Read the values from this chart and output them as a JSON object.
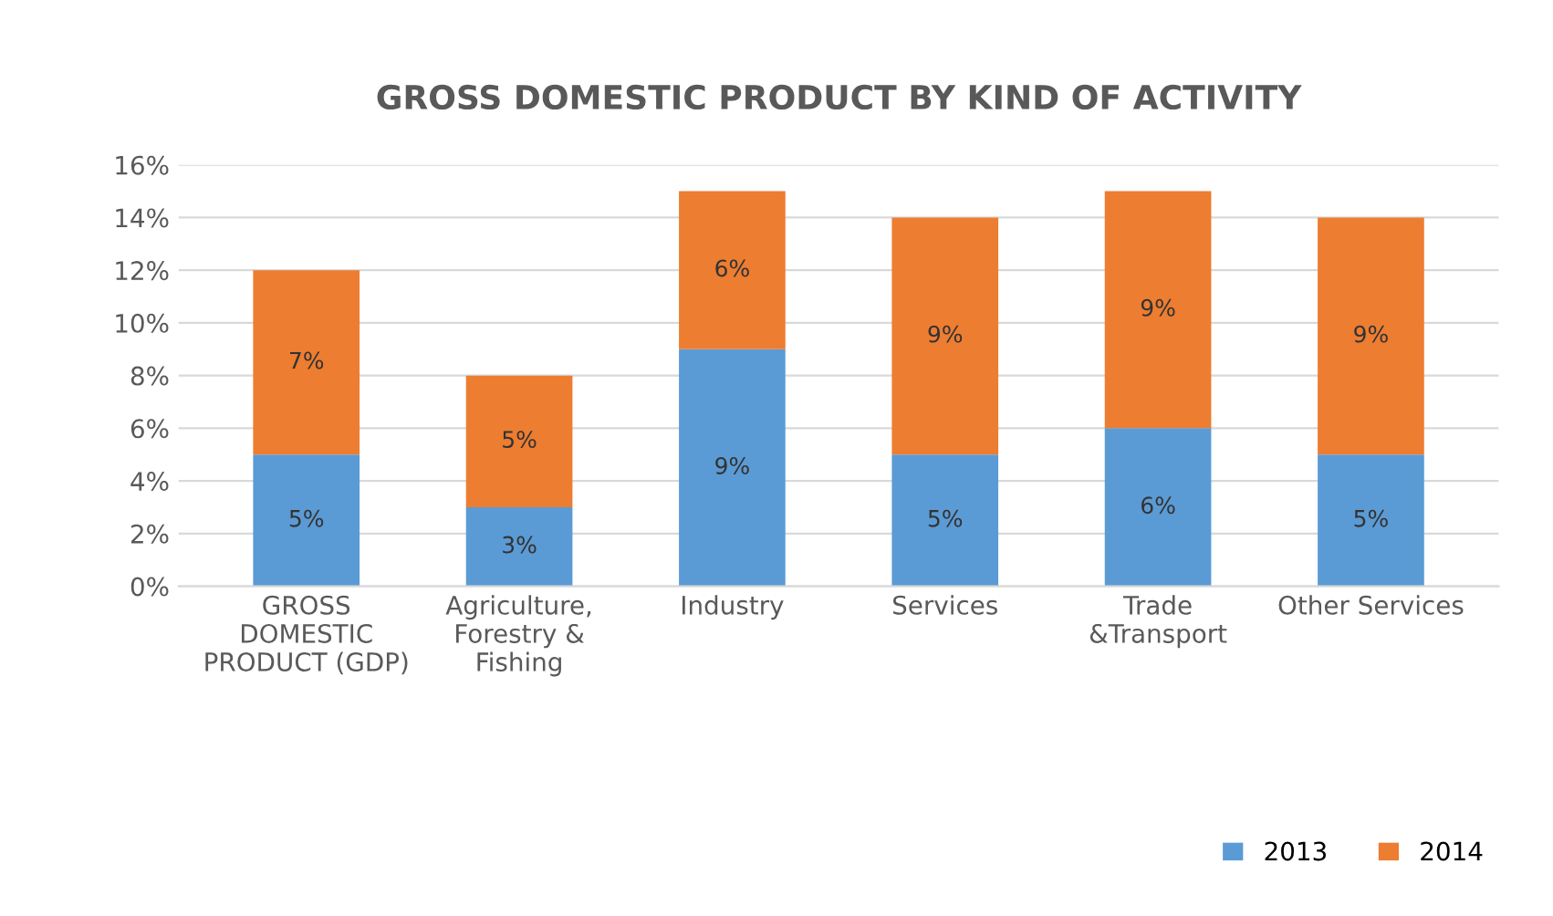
{
  "chart_data": {
    "type": "bar",
    "stacked": true,
    "title": "GROSS DOMESTIC PRODUCT BY KIND OF ACTIVITY",
    "categories": [
      "GROSS\nDOMESTIC\nPRODUCT (GDP)",
      "Agriculture,\nForestry &\nFishing",
      "Industry",
      "Services",
      "Trade\n&Transport",
      "Other Services"
    ],
    "series": [
      {
        "name": "2013",
        "color": "#5b9bd5",
        "values": [
          5,
          3,
          9,
          5,
          6,
          5
        ],
        "value_labels": [
          "5%",
          "3%",
          "9%",
          "5%",
          "6%",
          "5%"
        ]
      },
      {
        "name": "2014",
        "color": "#ed7d31",
        "values": [
          7,
          5,
          6,
          9,
          9,
          9
        ],
        "value_labels": [
          "7%",
          "5%",
          "6%",
          "9%",
          "9%",
          "9%"
        ]
      }
    ],
    "ylim": [
      0,
      16
    ],
    "yticks": [
      {
        "value": 0,
        "label": "0%"
      },
      {
        "value": 2,
        "label": "2%"
      },
      {
        "value": 4,
        "label": "4%"
      },
      {
        "value": 6,
        "label": "6%"
      },
      {
        "value": 8,
        "label": "8%"
      },
      {
        "value": 10,
        "label": "10%"
      },
      {
        "value": 12,
        "label": "12%"
      },
      {
        "value": 14,
        "label": "14%"
      },
      {
        "value": 16,
        "label": "16%"
      }
    ],
    "grid": "y",
    "legend": "bottom right"
  }
}
